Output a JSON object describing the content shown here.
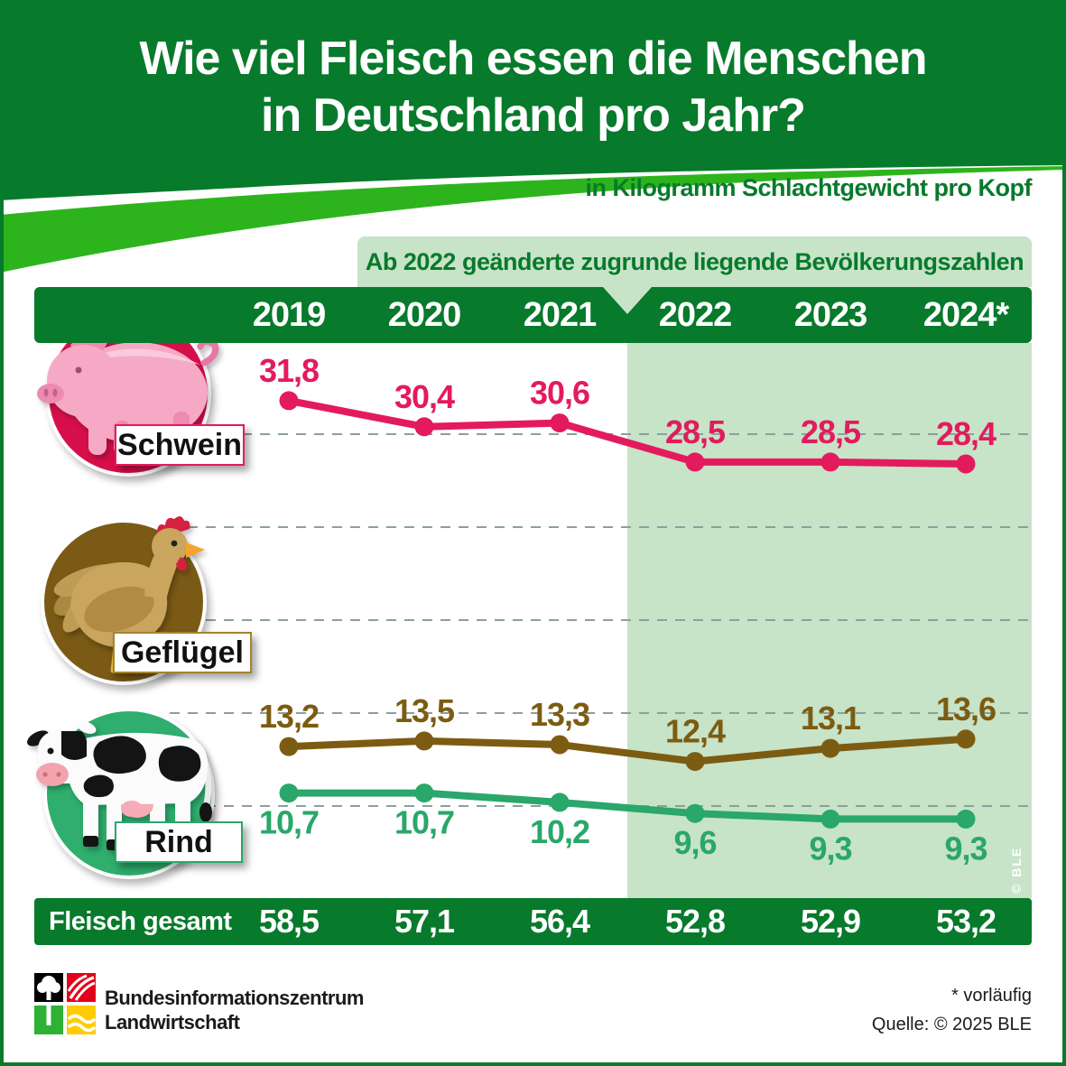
{
  "header": {
    "title_line1": "Wie viel Fleisch essen die Menschen",
    "title_line2": "in Deutschland pro Jahr?",
    "subtitle": "in Kilogramm Schlachtgewicht pro Kopf"
  },
  "note_band": {
    "text": "Ab 2022 geänderte zugrunde liegende Bevölkerungszahlen"
  },
  "chart_data": {
    "type": "line",
    "categories": [
      "2019",
      "2020",
      "2021",
      "2022",
      "2023",
      "2024*"
    ],
    "series": [
      {
        "name": "Schwein",
        "color": "#e31b5d",
        "values": [
          31.8,
          30.4,
          30.6,
          28.5,
          28.5,
          28.4
        ],
        "labels": [
          "31,8",
          "30,4",
          "30,6",
          "28,5",
          "28,5",
          "28,4"
        ],
        "label_position": "above"
      },
      {
        "name": "Geflügel",
        "color": "#7c5c12",
        "values": [
          13.2,
          13.5,
          13.3,
          12.4,
          13.1,
          13.6
        ],
        "labels": [
          "13,2",
          "13,5",
          "13,3",
          "12,4",
          "13,1",
          "13,6"
        ],
        "label_position": "above"
      },
      {
        "name": "Rind",
        "color": "#2aa76a",
        "values": [
          10.7,
          10.7,
          10.2,
          9.6,
          9.3,
          9.3
        ],
        "labels": [
          "10,7",
          "10,7",
          "10,2",
          "9,6",
          "9,3",
          "9,3"
        ],
        "label_position": "below"
      }
    ],
    "unit": "in Kilogramm Schlachtgewicht pro Kopf",
    "gridline_values": [
      30,
      25,
      20,
      15,
      10
    ],
    "ylim": [
      8,
      33
    ],
    "grid": "dashed-horizontal",
    "legend_position": "left-illustrations",
    "highlight_from_category": "2022",
    "highlight_note": "Ab 2022 geänderte zugrunde liegende Bevölkerungszahlen",
    "totals": {
      "label": "Fleisch gesamt",
      "values": [
        58.5,
        57.1,
        56.4,
        52.8,
        52.9,
        53.2
      ],
      "labels": [
        "58,5",
        "57,1",
        "56,4",
        "52,8",
        "52,9",
        "53,2"
      ]
    }
  },
  "watermark": "© BLE",
  "footer": {
    "org_line1": "Bundesinformationszentrum",
    "org_line2": "Landwirtschaft",
    "footnote": "* vorläufig",
    "source": "Quelle: © 2025 BLE"
  },
  "colors": {
    "dark_green": "#077a2b",
    "bright_green": "#2db41c",
    "light_green": "#c7e3c8",
    "schwein": "#e31b5d",
    "gefluegel": "#7c5c12",
    "rind": "#2aa76a",
    "gridline": "#8aa09e"
  }
}
